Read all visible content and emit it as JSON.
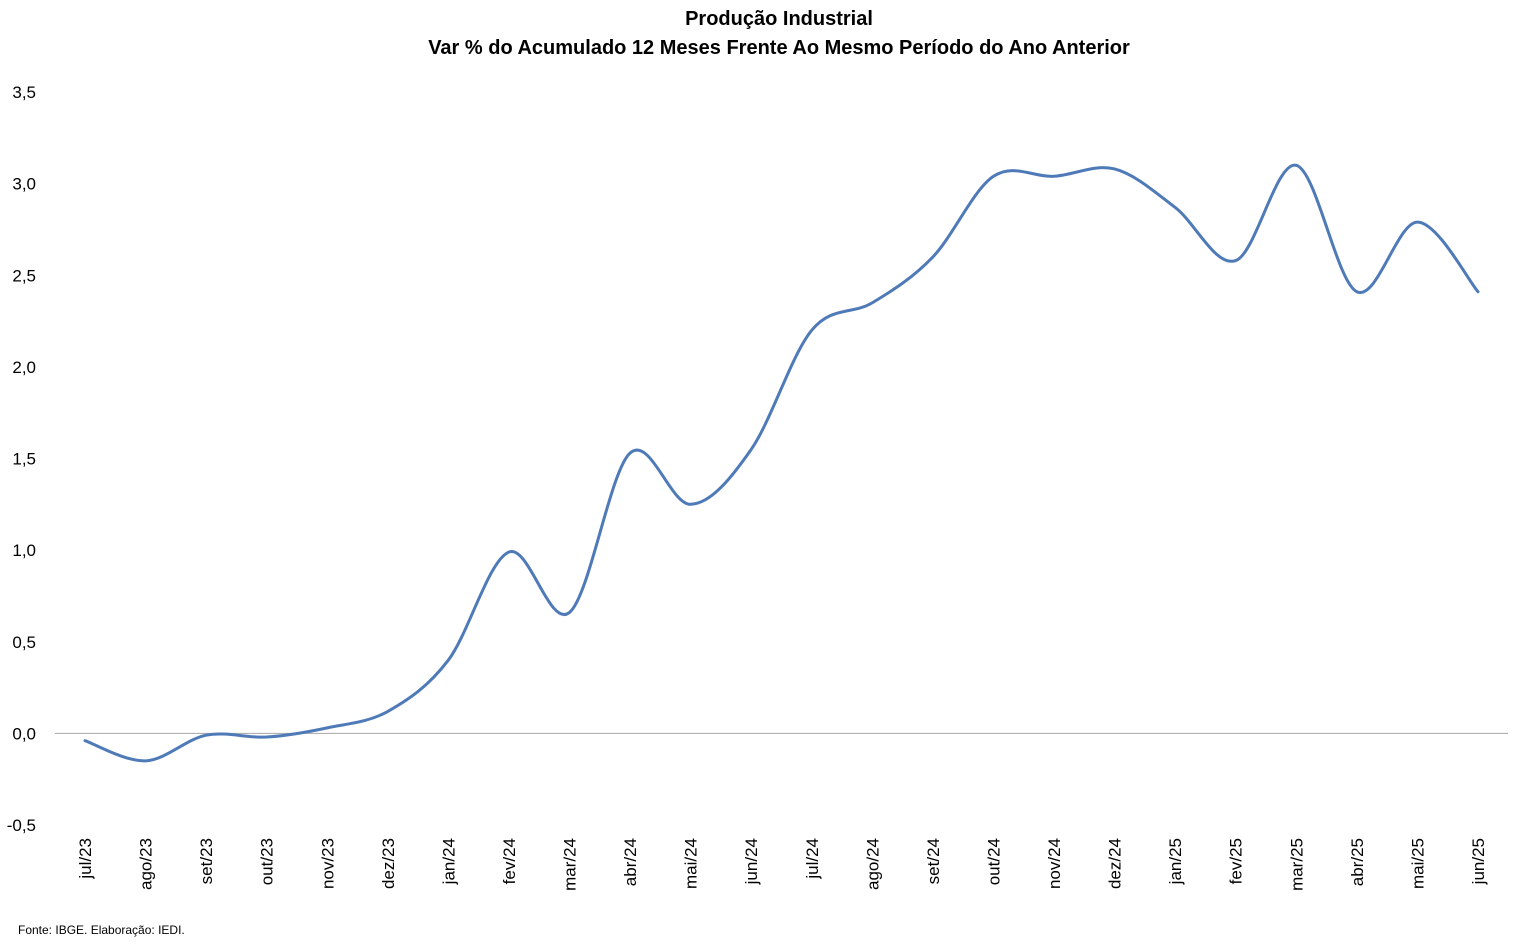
{
  "chart_data": {
    "type": "line",
    "title": "Produção Industrial",
    "subtitle": "Var % do Acumulado 12 Meses Frente Ao Mesmo Período do Ano Anterior",
    "xlabel": "",
    "ylabel": "",
    "categories": [
      "jul/23",
      "ago/23",
      "set/23",
      "out/23",
      "nov/23",
      "dez/23",
      "jan/24",
      "fev/24",
      "mar/24",
      "abr/24",
      "mai/24",
      "jun/24",
      "jul/24",
      "ago/24",
      "set/24",
      "out/24",
      "nov/24",
      "dez/24",
      "jan/25",
      "fev/25",
      "mar/25",
      "abr/25",
      "mai/25",
      "jun/25"
    ],
    "series": [
      {
        "values": [
          -0.04,
          -0.15,
          -0.01,
          -0.02,
          0.03,
          0.12,
          0.4,
          0.99,
          0.66,
          1.53,
          1.25,
          1.55,
          2.2,
          2.35,
          2.6,
          3.04,
          3.04,
          3.08,
          2.87,
          2.58,
          3.1,
          2.41,
          2.79,
          2.41
        ],
        "color": "#4f7ab8"
      }
    ],
    "ylim": [
      -0.5,
      3.5
    ],
    "ytick_step": 0.5,
    "ytick_labels": [
      "-0,5",
      "0,0",
      "0,5",
      "1,0",
      "1,5",
      "2,0",
      "2,5",
      "3,0",
      "3,5"
    ],
    "grid": false,
    "zero_line": true,
    "zero_line_color": "#a6a6a6",
    "legend": "none",
    "x_tick_rotation": -90
  },
  "source": "Fonte: IBGE. Elaboração: IEDI."
}
